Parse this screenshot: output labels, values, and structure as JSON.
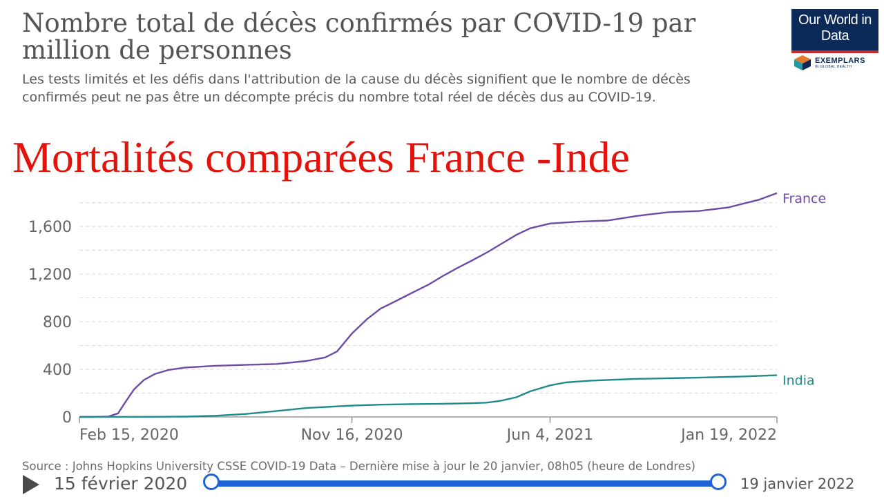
{
  "header": {
    "title": "Nombre total de décès confirmés par COVID-19 par million de personnes",
    "subtitle": "Les tests limités et les défis dans l'attribution de la cause du décès signifient que le nombre de décès confirmés peut ne pas être un décompte précis du nombre total réel de décès dus au COVID-19.",
    "overlay_title": "Mortalités comparées France -Inde"
  },
  "logo": {
    "text": "Our World in Data",
    "partner": "EXEMPLARS",
    "partner_sub": "IN GLOBAL HEALTH"
  },
  "colors": {
    "france": "#6c4ba6",
    "india": "#1f8a8a",
    "overlay": "#e3120b",
    "slider": "#1f63d6"
  },
  "chart_data": {
    "type": "line",
    "title": "Nombre total de décès confirmés par COVID-19 par million de personnes",
    "xlabel": "",
    "ylabel": "",
    "x_ticks": [
      "Feb 15, 2020",
      "Nov 16, 2020",
      "Jun 4, 2021",
      "Jan 19, 2022"
    ],
    "y_ticks": [
      0,
      400,
      800,
      1200,
      1600
    ],
    "y_tick_labels": [
      "0",
      "400",
      "800",
      "1,200",
      "1,600"
    ],
    "ylim": [
      0,
      1850
    ],
    "xlim": [
      "2020-02-15",
      "2022-01-19"
    ],
    "grid": "horizontal dashed",
    "legend": "inline labels at line ends",
    "series": [
      {
        "name": "France",
        "points": [
          [
            "2020-02-15",
            0
          ],
          [
            "2020-03-01",
            0
          ],
          [
            "2020-03-15",
            3
          ],
          [
            "2020-03-25",
            30
          ],
          [
            "2020-04-01",
            120
          ],
          [
            "2020-04-10",
            230
          ],
          [
            "2020-04-20",
            310
          ],
          [
            "2020-05-01",
            360
          ],
          [
            "2020-05-15",
            395
          ],
          [
            "2020-06-01",
            415
          ],
          [
            "2020-07-01",
            430
          ],
          [
            "2020-08-01",
            437
          ],
          [
            "2020-09-01",
            445
          ],
          [
            "2020-10-01",
            470
          ],
          [
            "2020-10-20",
            500
          ],
          [
            "2020-11-01",
            550
          ],
          [
            "2020-11-16",
            700
          ],
          [
            "2020-12-01",
            820
          ],
          [
            "2020-12-15",
            910
          ],
          [
            "2021-01-01",
            980
          ],
          [
            "2021-01-15",
            1040
          ],
          [
            "2021-02-01",
            1110
          ],
          [
            "2021-02-15",
            1180
          ],
          [
            "2021-03-01",
            1245
          ],
          [
            "2021-03-15",
            1305
          ],
          [
            "2021-04-01",
            1380
          ],
          [
            "2021-04-15",
            1450
          ],
          [
            "2021-05-01",
            1530
          ],
          [
            "2021-05-15",
            1585
          ],
          [
            "2021-06-04",
            1625
          ],
          [
            "2021-07-01",
            1640
          ],
          [
            "2021-08-01",
            1650
          ],
          [
            "2021-09-01",
            1690
          ],
          [
            "2021-10-01",
            1720
          ],
          [
            "2021-11-01",
            1730
          ],
          [
            "2021-12-01",
            1760
          ],
          [
            "2021-12-20",
            1800
          ],
          [
            "2022-01-01",
            1825
          ],
          [
            "2022-01-19",
            1880
          ]
        ]
      },
      {
        "name": "India",
        "points": [
          [
            "2020-02-15",
            0
          ],
          [
            "2020-05-01",
            1
          ],
          [
            "2020-06-01",
            3
          ],
          [
            "2020-07-01",
            10
          ],
          [
            "2020-08-01",
            25
          ],
          [
            "2020-09-01",
            50
          ],
          [
            "2020-10-01",
            75
          ],
          [
            "2020-11-16",
            95
          ],
          [
            "2020-12-15",
            103
          ],
          [
            "2021-01-15",
            108
          ],
          [
            "2021-02-15",
            110
          ],
          [
            "2021-03-15",
            115
          ],
          [
            "2021-04-01",
            120
          ],
          [
            "2021-04-15",
            135
          ],
          [
            "2021-05-01",
            165
          ],
          [
            "2021-05-15",
            215
          ],
          [
            "2021-06-04",
            265
          ],
          [
            "2021-06-20",
            290
          ],
          [
            "2021-07-15",
            305
          ],
          [
            "2021-09-01",
            320
          ],
          [
            "2021-11-01",
            330
          ],
          [
            "2021-12-15",
            340
          ],
          [
            "2022-01-19",
            350
          ]
        ]
      }
    ]
  },
  "footer": {
    "source": "Source : Johns Hopkins University CSSE COVID-19 Data – Dernière mise à jour le 20 janvier, 08h05 (heure de Londres)",
    "ghost_url": "OurWorldInData.org"
  },
  "timeline": {
    "start_label": "15 février 2020",
    "end_label": "19 janvier 2022"
  }
}
